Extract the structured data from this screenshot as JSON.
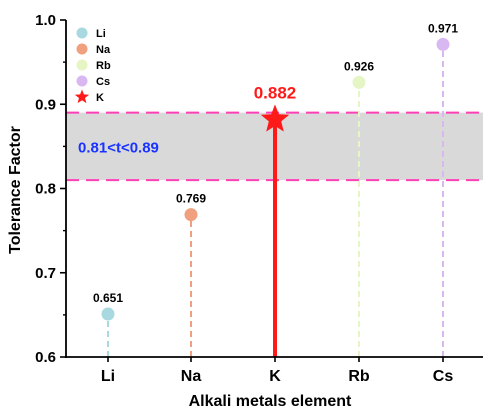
{
  "chart_data": {
    "type": "scatter",
    "xlabel": "Alkali metals element",
    "ylabel": "Tolerance Factor",
    "ylim": [
      0.6,
      1.0
    ],
    "yticks": [
      "0.6",
      "0.7",
      "0.8",
      "0.9",
      "1.0"
    ],
    "categories": [
      "Li",
      "Na",
      "K",
      "Rb",
      "Cs"
    ],
    "series": [
      {
        "name": "Li",
        "x": "Li",
        "value": 0.651,
        "label": "0.651",
        "color": "#a8d8e0",
        "marker": "circle"
      },
      {
        "name": "Na",
        "x": "Na",
        "value": 0.769,
        "label": "0.769",
        "color": "#f0a07e",
        "marker": "circle"
      },
      {
        "name": "K",
        "x": "K",
        "value": 0.882,
        "label": "0.882",
        "color": "#ff1a1a",
        "marker": "star"
      },
      {
        "name": "Rb",
        "x": "Rb",
        "value": 0.926,
        "label": "0.926",
        "color": "#e6f5c4",
        "marker": "circle"
      },
      {
        "name": "Cs",
        "x": "Cs",
        "value": 0.971,
        "label": "0.971",
        "color": "#d9b8f2",
        "marker": "circle"
      }
    ],
    "legend_order": [
      "Li",
      "Na",
      "Rb",
      "Cs",
      "K"
    ],
    "legend_position": "top-left",
    "band": {
      "low": 0.81,
      "high": 0.89,
      "label": "0.81<t<0.89",
      "fill": "#d9d9d9",
      "line_color": "#ff3fb4",
      "label_color": "#1a33ff"
    },
    "highlight_color": "#ff1a1a",
    "grid": false
  }
}
